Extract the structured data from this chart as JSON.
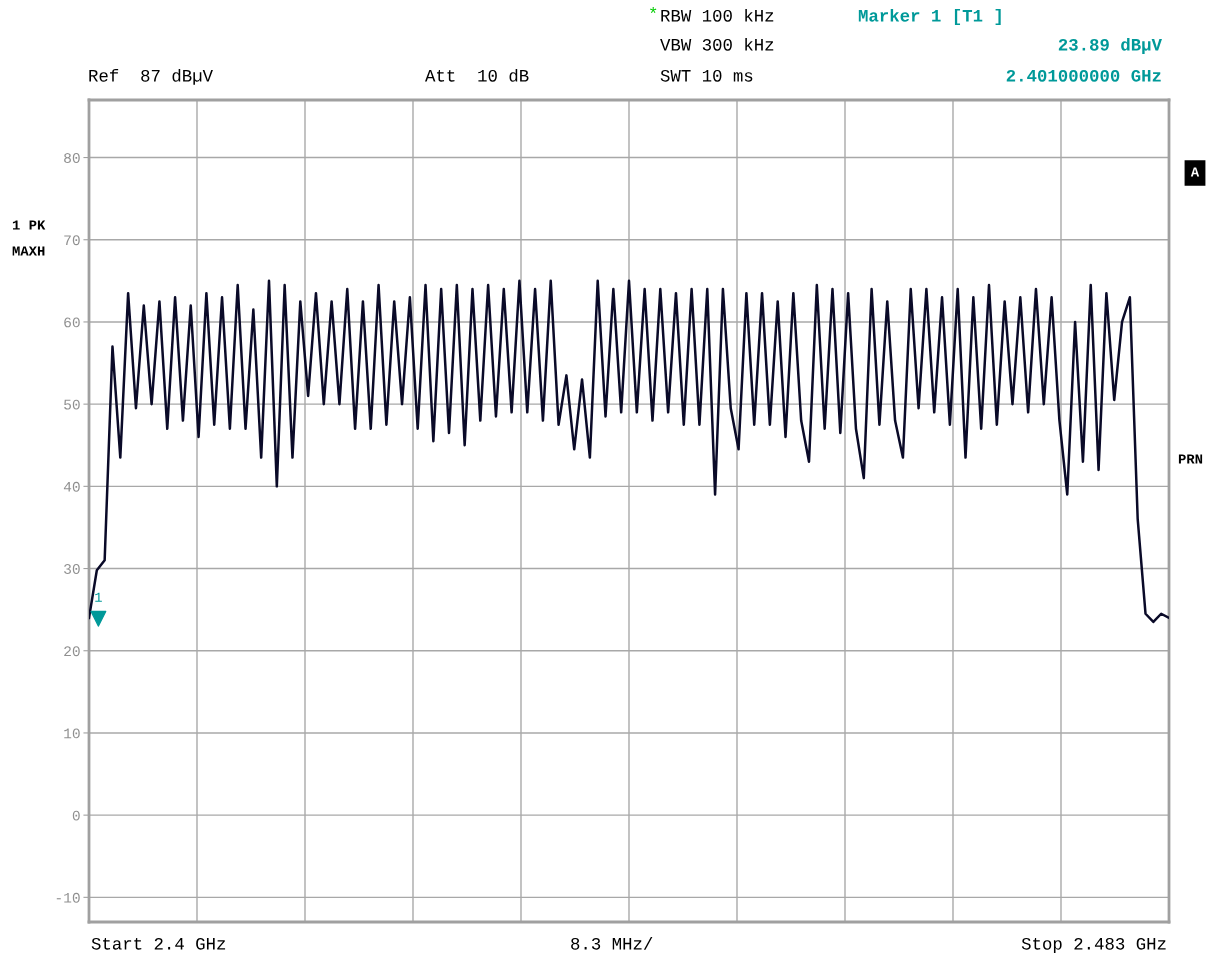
{
  "chart_data": {
    "type": "line",
    "annotations": [
      "*",
      "RBW 100 kHz",
      "Marker 1 [T1 ]",
      "VBW 300 kHz",
      "23.89 dBµV",
      "Ref  87 dBµV",
      "Att  10 dB",
      "SWT 10 ms",
      "2.401000000 GHz",
      "1 PK",
      "MAXH",
      "A",
      "PRN",
      "Start 2.4 GHz",
      "8.3 MHz/",
      "Stop 2.483 GHz",
      {
        "text": "1",
        "y": 23.89
      }
    ],
    "categories": [
      null,
      null,
      null,
      null,
      null,
      null,
      null,
      null,
      null,
      null,
      null,
      null,
      null,
      null,
      null,
      null,
      null,
      null,
      null,
      null,
      null,
      null,
      null,
      null,
      null,
      null,
      null,
      null,
      null,
      null,
      null,
      null,
      null,
      null,
      null,
      null,
      null,
      null,
      null,
      null,
      null,
      null,
      null,
      null,
      null,
      null,
      null,
      null,
      null,
      null,
      null,
      null,
      null,
      null,
      null,
      null,
      null,
      null,
      null,
      null,
      null,
      null,
      null,
      null,
      null,
      null,
      null,
      null,
      null,
      null,
      null,
      null,
      null,
      null,
      null,
      null,
      null,
      null,
      null,
      null,
      null,
      null,
      null,
      null,
      null,
      null,
      null,
      null,
      null,
      null,
      null,
      null,
      null,
      null,
      null,
      null,
      null,
      null,
      null,
      null,
      null,
      null,
      null,
      null,
      null,
      null,
      null,
      null,
      null,
      null,
      null,
      null,
      null,
      null,
      null,
      null,
      null,
      null,
      null,
      null,
      null,
      null,
      null,
      null,
      null,
      null,
      null,
      null,
      null,
      null,
      null,
      null,
      null,
      null,
      null,
      null,
      null,
      null,
      null
    ],
    "ylim": [
      -13,
      87
    ],
    "yticks": [
      -10,
      0,
      10,
      20,
      30,
      40,
      50,
      60,
      70,
      80
    ],
    "tick_labels": "y",
    "grid": true,
    "legend": false,
    "marker": "none",
    "line_style": "solid",
    "series": [
      {
        "type": "line",
        "color": "#0a0a28",
        "values": [
          24,
          29.8,
          31,
          57,
          43.5,
          63.5,
          49.5,
          62,
          50,
          62.5,
          47,
          63,
          48,
          62,
          46,
          63.5,
          47.5,
          63,
          47,
          64.5,
          47,
          61.5,
          43.5,
          65,
          40,
          64.5,
          43.5,
          62.5,
          51,
          63.5,
          50,
          62.5,
          50,
          64,
          47,
          62.5,
          47,
          64.5,
          47.5,
          62.5,
          50,
          63,
          47,
          64.5,
          45.5,
          64,
          46.5,
          64.5,
          45,
          64,
          48,
          64.5,
          48.5,
          64,
          49,
          65,
          49,
          64,
          48,
          65,
          47.5,
          53.5,
          44.5,
          53,
          43.5,
          65,
          48.5,
          64,
          49,
          65,
          49,
          64,
          48,
          64,
          49,
          63.5,
          47.5,
          64,
          47.5,
          64,
          39,
          64,
          49.5,
          44.5,
          63.5,
          47.5,
          63.5,
          47.5,
          62.5,
          46,
          63.5,
          48,
          43,
          64.5,
          47,
          64,
          46.5,
          63.5,
          47,
          41,
          64,
          47.5,
          62.5,
          48,
          43.5,
          64,
          49.5,
          64,
          49,
          63,
          47.5,
          64,
          43.5,
          63,
          47,
          64.5,
          47.5,
          62.5,
          50,
          63,
          49,
          64,
          50,
          63,
          48,
          39,
          60,
          43,
          64.5,
          42,
          63.5,
          50.5,
          60,
          63,
          36,
          24.5,
          23.5,
          24.5,
          24
        ]
      }
    ]
  }
}
